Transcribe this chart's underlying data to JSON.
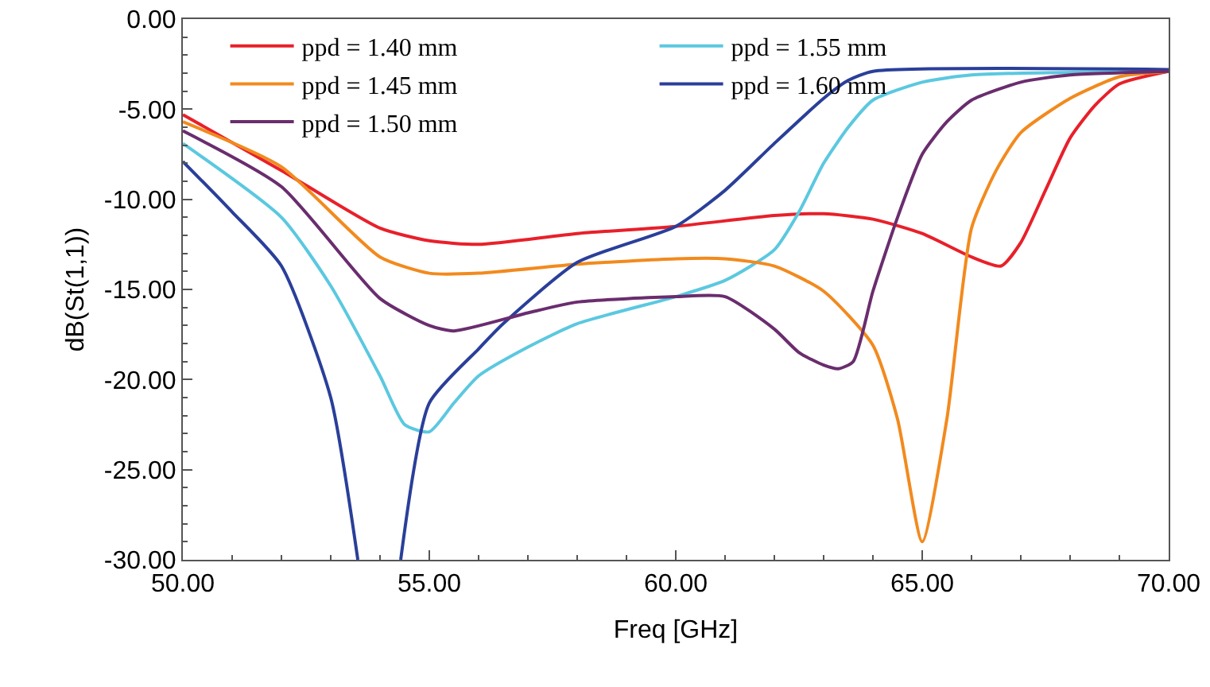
{
  "chart_data": {
    "type": "line",
    "xlabel": "Freq [GHz]",
    "ylabel": "dB(St(1,1))",
    "xlim": [
      50,
      70
    ],
    "ylim": [
      -30,
      0
    ],
    "xticks": [
      {
        "value": 50,
        "label": "50.00"
      },
      {
        "value": 55,
        "label": "55.00"
      },
      {
        "value": 60,
        "label": "60.00"
      },
      {
        "value": 65,
        "label": "65.00"
      },
      {
        "value": 70,
        "label": "70.00"
      }
    ],
    "yticks": [
      {
        "value": -30,
        "label": "-30.00"
      },
      {
        "value": -25,
        "label": "-25.00"
      },
      {
        "value": -20,
        "label": "-20.00"
      },
      {
        "value": -15,
        "label": "-15.00"
      },
      {
        "value": -10,
        "label": "-10.00"
      },
      {
        "value": -5,
        "label": "-5.00"
      },
      {
        "value": 0,
        "label": "0.00"
      }
    ],
    "grid": false,
    "legend": "top left",
    "marker": "none",
    "line_style": "solid",
    "series": [
      {
        "name": "ppd = 1.40 mm",
        "color": "#e8202a",
        "x": [
          50,
          52,
          54,
          55,
          56,
          58,
          60,
          62,
          63,
          64,
          65,
          66,
          66.6,
          67,
          67.5,
          68,
          68.5,
          69,
          70
        ],
        "values": [
          -5.3,
          -8.4,
          -11.6,
          -12.3,
          -12.5,
          -11.9,
          -11.5,
          -10.9,
          -10.8,
          -11.1,
          -11.9,
          -13.2,
          -13.7,
          -12.4,
          -9.5,
          -6.6,
          -4.8,
          -3.6,
          -2.9
        ]
      },
      {
        "name": "ppd = 1.45 mm",
        "color": "#f28a1e",
        "x": [
          50,
          52,
          54,
          55,
          56,
          58,
          60,
          61,
          62,
          63,
          64,
          64.5,
          65,
          65.5,
          66,
          66.5,
          67,
          68,
          69,
          70
        ],
        "values": [
          -5.7,
          -8.2,
          -13.2,
          -14.1,
          -14.1,
          -13.6,
          -13.3,
          -13.3,
          -13.7,
          -15.1,
          -18.1,
          -22.2,
          -29,
          -22.2,
          -11.6,
          -8.4,
          -6.3,
          -4.4,
          -3.2,
          -2.9
        ]
      },
      {
        "name": "ppd = 1.50 mm",
        "color": "#6a2d6e",
        "x": [
          50,
          52,
          54,
          55,
          55.5,
          57,
          58,
          60,
          61,
          62,
          62.5,
          63,
          63.3,
          63.6,
          64,
          64.5,
          65,
          65.5,
          66,
          67,
          68,
          70
        ],
        "values": [
          -6.2,
          -9.3,
          -15.5,
          -17.0,
          -17.3,
          -16.3,
          -15.7,
          -15.4,
          -15.4,
          -17.2,
          -18.5,
          -19.2,
          -19.4,
          -19.0,
          -15.1,
          -11.0,
          -7.5,
          -5.7,
          -4.5,
          -3.5,
          -3.1,
          -2.9
        ]
      },
      {
        "name": "ppd = 1.55 mm",
        "color": "#5bc8e0",
        "x": [
          50,
          52,
          53,
          54,
          54.5,
          55,
          55.5,
          56,
          57,
          58,
          60,
          61,
          62,
          62.5,
          63,
          63.5,
          64,
          65,
          66,
          70
        ],
        "values": [
          -6.9,
          -11.0,
          -14.8,
          -19.8,
          -22.5,
          -22.9,
          -21.3,
          -19.8,
          -18.2,
          -16.9,
          -15.4,
          -14.5,
          -12.8,
          -10.7,
          -8.0,
          -6.0,
          -4.5,
          -3.5,
          -3.1,
          -2.9
        ]
      },
      {
        "name": "ppd = 1.60 mm",
        "color": "#2a3f9a",
        "x": [
          50,
          51,
          52,
          53,
          53.55,
          54,
          54.42,
          55,
          56,
          56.5,
          58,
          60,
          61,
          62,
          63,
          63.5,
          64,
          70
        ],
        "values": [
          -7.9,
          -10.7,
          -13.7,
          -21.0,
          -30,
          null,
          -30,
          -21.3,
          -18.3,
          -16.9,
          -13.5,
          -11.5,
          -9.5,
          -6.9,
          -4.4,
          -3.4,
          -2.9,
          -2.8
        ]
      }
    ]
  }
}
